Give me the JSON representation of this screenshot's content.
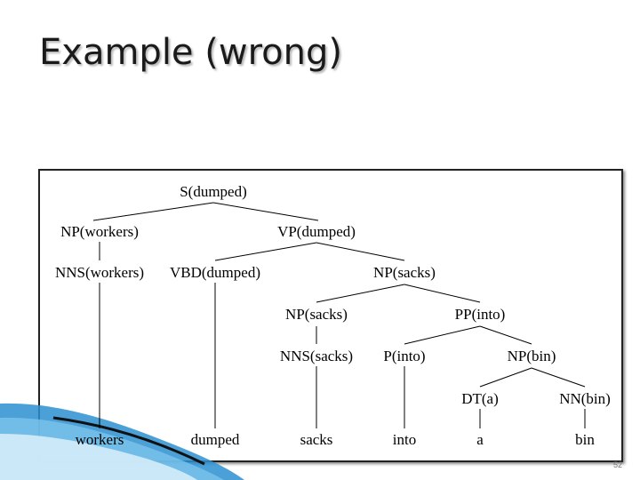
{
  "slide": {
    "title": "Example (wrong)",
    "page_number": "52"
  },
  "tree": {
    "nodes": {
      "s": "S(dumped)",
      "np_workers": "NP(workers)",
      "vp": "VP(dumped)",
      "nns_workers": "NNS(workers)",
      "vbd": "VBD(dumped)",
      "np_sacks_top": "NP(sacks)",
      "np_sacks": "NP(sacks)",
      "pp": "PP(into)",
      "nns_sacks": "NNS(sacks)",
      "p_into": "P(into)",
      "np_bin": "NP(bin)",
      "dt": "DT(a)",
      "nn": "NN(bin)",
      "w_workers": "workers",
      "w_dumped": "dumped",
      "w_sacks": "sacks",
      "w_into": "into",
      "w_a": "a",
      "w_bin": "bin"
    }
  },
  "colors": {
    "title": "#1a1a1a",
    "accent": "#2a8fd0",
    "frame_border": "#222222"
  }
}
